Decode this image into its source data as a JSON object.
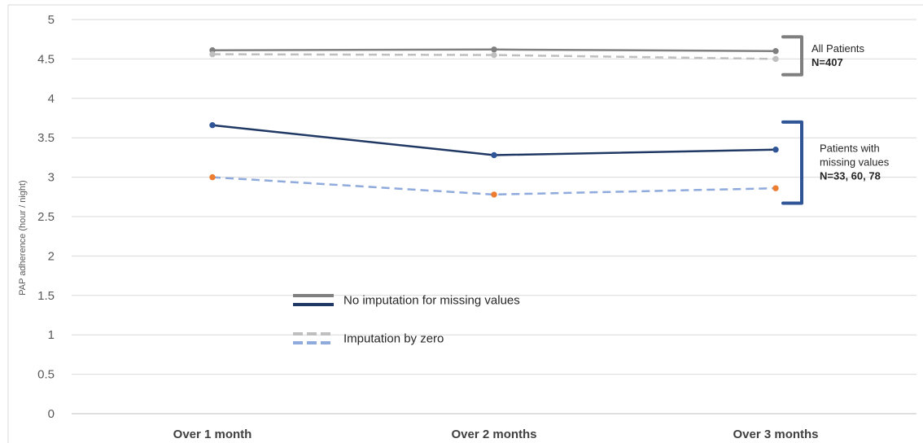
{
  "chart_data": {
    "type": "line",
    "categories": [
      "Over 1 month",
      "Over 2 months",
      "Over 3 months"
    ],
    "ylabel": "PAP adherence (hour / night)",
    "xlabel": "",
    "title": "",
    "ylim": [
      0,
      5
    ],
    "yticks": [
      "0",
      "0.5",
      "1",
      "1.5",
      "2",
      "2.5",
      "3",
      "3.5",
      "4",
      "4.5",
      "5"
    ],
    "grid": true,
    "series": [
      {
        "key": "all_noimp",
        "values": [
          4.61,
          4.62,
          4.6
        ],
        "color": "#7f7f7f",
        "style": "solid",
        "marker_color": "#7f7f7f"
      },
      {
        "key": "all_zero",
        "values": [
          4.56,
          4.55,
          4.5
        ],
        "color": "#bfbfbf",
        "style": "dashed",
        "marker_color": "#bfbfbf"
      },
      {
        "key": "miss_noimp",
        "values": [
          3.66,
          3.28,
          3.35
        ],
        "color": "#203864",
        "style": "solid",
        "marker_color": "#2f5597"
      },
      {
        "key": "miss_zero",
        "values": [
          3.0,
          2.78,
          2.86
        ],
        "color": "#8faadc",
        "style": "dashed",
        "marker_color": "#ed7d31"
      }
    ],
    "legend": [
      {
        "label": "No imputation for missing values",
        "colors": [
          "#7f7f7f",
          "#203864"
        ],
        "style": "solid"
      },
      {
        "label": "Imputation by zero",
        "colors": [
          "#bfbfbf",
          "#8faadc"
        ],
        "style": "dashed"
      }
    ],
    "annotations": [
      {
        "lines": [
          "All Patients"
        ],
        "bold": "N=407",
        "color": "#7f7f7f",
        "y_range": [
          4.3,
          4.78
        ]
      },
      {
        "lines": [
          "Patients with",
          "missing values"
        ],
        "bold": "N=33, 60, 78",
        "color": "#2f5597",
        "y_range": [
          2.67,
          3.7
        ]
      }
    ]
  }
}
